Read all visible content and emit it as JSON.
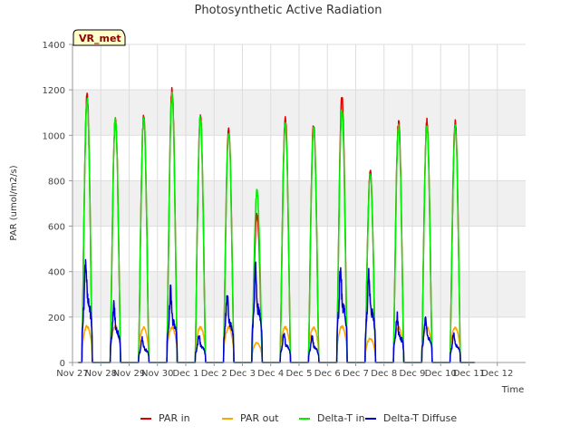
{
  "chart_data": {
    "type": "line",
    "title": "Photosynthetic Active Radiation",
    "xlabel": "Time",
    "ylabel": "PAR (umol/m2/s)",
    "badge": "VR_met",
    "ylim": [
      0,
      1400
    ],
    "xlim": [
      0,
      16
    ],
    "yticks": [
      0,
      200,
      400,
      600,
      800,
      1000,
      1200,
      1400
    ],
    "xticks": [
      {
        "x": 0,
        "label": "Nov 27"
      },
      {
        "x": 1,
        "label": "Nov 28"
      },
      {
        "x": 2,
        "label": "Nov 29"
      },
      {
        "x": 3,
        "label": "Nov 30"
      },
      {
        "x": 4,
        "label": "Dec 1"
      },
      {
        "x": 5,
        "label": "Dec 2"
      },
      {
        "x": 6,
        "label": "Dec 3"
      },
      {
        "x": 7,
        "label": "Dec 4"
      },
      {
        "x": 8,
        "label": "Dec 5"
      },
      {
        "x": 9,
        "label": "Dec 6"
      },
      {
        "x": 10,
        "label": "Dec 7"
      },
      {
        "x": 11,
        "label": "Dec 8"
      },
      {
        "x": 12,
        "label": "Dec 9"
      },
      {
        "x": 13,
        "label": "Dec 10"
      },
      {
        "x": 14,
        "label": "Dec 11"
      },
      {
        "x": 15,
        "label": "Dec 12"
      }
    ],
    "grid": true,
    "legend_position": "bottom",
    "series": [
      {
        "name": "PAR in",
        "color": "#dd0000",
        "peaks": [
          1190,
          1090,
          1095,
          1215,
          1095,
          1050,
          660,
          1085,
          1060,
          1185,
          850,
          1075,
          1075,
          1070
        ]
      },
      {
        "name": "PAR out",
        "color": "#ffa500",
        "peaks": [
          165,
          165,
          160,
          160,
          160,
          160,
          90,
          160,
          160,
          165,
          110,
          160,
          160,
          160
        ]
      },
      {
        "name": "Delta-T in",
        "color": "#00ee00",
        "peaks": [
          1180,
          1085,
          1095,
          1195,
          1090,
          1030,
          765,
          1065,
          1040,
          1130,
          840,
          1050,
          1055,
          1050
        ]
      },
      {
        "name": "Delta-T Diffuse",
        "color": "#0000cc",
        "peaks": [
          530,
          290,
          120,
          360,
          140,
          355,
          470,
          150,
          130,
          490,
          460,
          235,
          230,
          150
        ]
      }
    ]
  }
}
